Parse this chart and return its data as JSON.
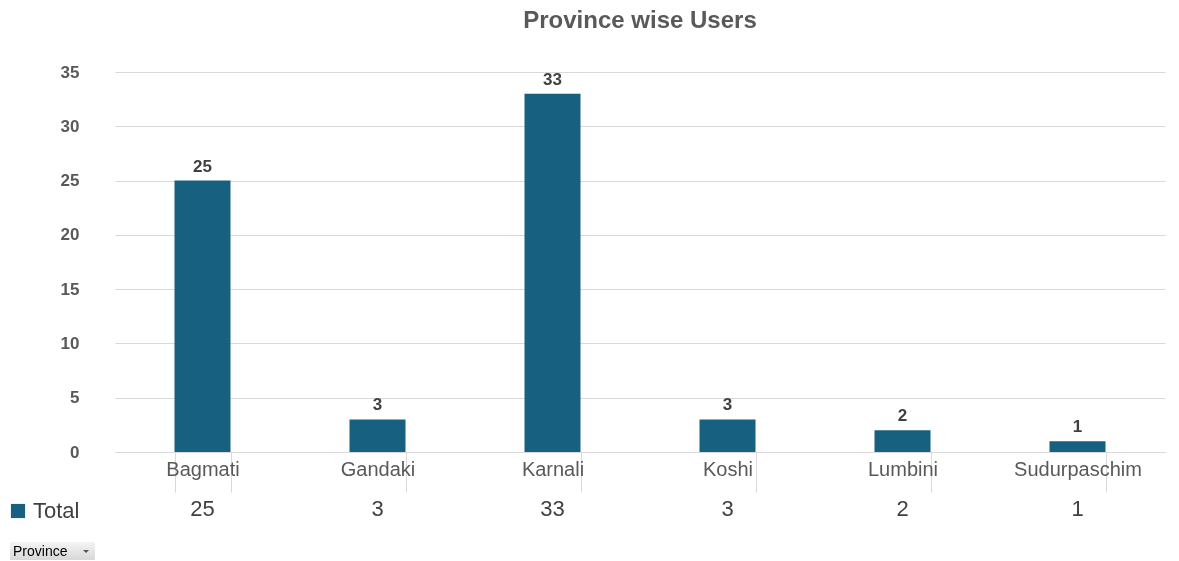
{
  "chart_data": {
    "type": "bar",
    "title": "Province wise Users",
    "categories": [
      "Bagmati",
      "Gandaki",
      "Karnali",
      "Koshi",
      "Lumbini",
      "Sudurpaschim"
    ],
    "series": [
      {
        "name": "Total",
        "color": "#17607f",
        "values": [
          25,
          3,
          33,
          3,
          2,
          1
        ]
      }
    ],
    "ylim": [
      0,
      35
    ],
    "yticks": [
      0,
      5,
      10,
      15,
      20,
      25,
      30,
      35
    ],
    "grid": "y",
    "legend": "bottom left",
    "data_labels": true,
    "annotations": [
      "Province",
      "25",
      "3",
      "33",
      "3",
      "2",
      "1"
    ]
  }
}
